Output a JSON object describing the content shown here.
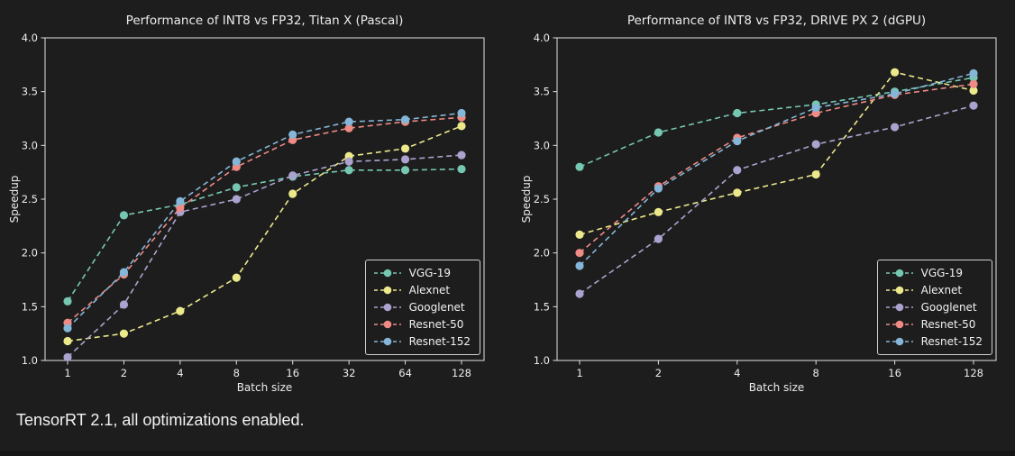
{
  "caption": "TensorRT 2.1, all optimizations enabled.",
  "colors": {
    "background": "#1d1d1d",
    "axis": "#e3e3e3",
    "text": "#f2f2f2"
  },
  "chart_data": [
    {
      "type": "line",
      "title": "Performance of INT8 vs FP32, Titan X (Pascal)",
      "xlabel": "Batch size",
      "ylabel": "Speedup",
      "ylim": [
        1.0,
        4.0
      ],
      "yticks": [
        1.0,
        1.5,
        2.0,
        2.5,
        3.0,
        3.5,
        4.0
      ],
      "categories": [
        "1",
        "2",
        "4",
        "8",
        "16",
        "32",
        "64",
        "128"
      ],
      "grid": false,
      "line_style": "dashed",
      "marker": "circle",
      "legend_position": "lower right",
      "series": [
        {
          "name": "VGG-19",
          "color": "#76c7b1",
          "values": [
            1.55,
            2.35,
            2.45,
            2.61,
            2.71,
            2.77,
            2.77,
            2.78
          ]
        },
        {
          "name": "Alexnet",
          "color": "#ece98b",
          "values": [
            1.18,
            1.25,
            1.46,
            1.77,
            2.55,
            2.9,
            2.97,
            3.18
          ]
        },
        {
          "name": "Googlenet",
          "color": "#aca2cf",
          "values": [
            1.03,
            1.52,
            2.38,
            2.5,
            2.72,
            2.85,
            2.87,
            2.91
          ]
        },
        {
          "name": "Resnet-50",
          "color": "#ef8a84",
          "values": [
            1.35,
            1.8,
            2.42,
            2.8,
            3.05,
            3.16,
            3.22,
            3.26
          ]
        },
        {
          "name": "Resnet-152",
          "color": "#84b6d9",
          "values": [
            1.3,
            1.82,
            2.48,
            2.85,
            3.1,
            3.22,
            3.24,
            3.3
          ]
        }
      ]
    },
    {
      "type": "line",
      "title": "Performance of INT8 vs FP32, DRIVE PX 2 (dGPU)",
      "xlabel": "Batch size",
      "ylabel": "Speedup",
      "ylim": [
        1.0,
        4.0
      ],
      "yticks": [
        1.0,
        1.5,
        2.0,
        2.5,
        3.0,
        3.5,
        4.0
      ],
      "categories": [
        "1",
        "2",
        "4",
        "8",
        "16",
        "128"
      ],
      "grid": false,
      "line_style": "dashed",
      "marker": "circle",
      "legend_position": "lower right",
      "series": [
        {
          "name": "VGG-19",
          "color": "#76c7b1",
          "values": [
            2.8,
            3.12,
            3.3,
            3.38,
            3.5,
            3.63
          ]
        },
        {
          "name": "Alexnet",
          "color": "#ece98b",
          "values": [
            2.17,
            2.38,
            2.56,
            2.73,
            3.68,
            3.51
          ]
        },
        {
          "name": "Googlenet",
          "color": "#aca2cf",
          "values": [
            1.62,
            2.13,
            2.77,
            3.01,
            3.17,
            3.37
          ]
        },
        {
          "name": "Resnet-50",
          "color": "#ef8a84",
          "values": [
            2.0,
            2.62,
            3.07,
            3.3,
            3.47,
            3.57
          ]
        },
        {
          "name": "Resnet-152",
          "color": "#84b6d9",
          "values": [
            1.88,
            2.6,
            3.04,
            3.35,
            3.48,
            3.67
          ]
        }
      ]
    }
  ]
}
